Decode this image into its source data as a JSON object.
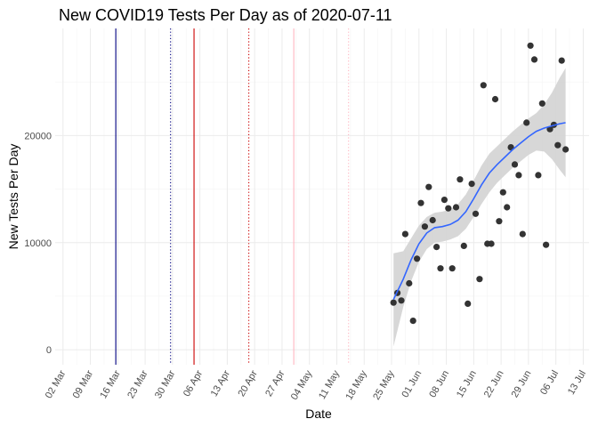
{
  "chart_data": {
    "type": "scatter",
    "title": "New COVID19 Tests Per Day as of 2020-07-11",
    "xlabel": "Date",
    "ylabel": "New Tests Per Day",
    "x_ticks": [
      "02 Mar",
      "09 Mar",
      "16 Mar",
      "23 Mar",
      "30 Mar",
      "06 Apr",
      "13 Apr",
      "20 Apr",
      "27 Apr",
      "04 May",
      "11 May",
      "18 May",
      "25 May",
      "01 Jun",
      "08 Jun",
      "15 Jun",
      "22 Jun",
      "29 Jun",
      "06 Jul",
      "13 Jul"
    ],
    "x_tick_days": [
      0,
      7,
      14,
      21,
      28,
      35,
      42,
      49,
      56,
      63,
      70,
      77,
      84,
      91,
      98,
      105,
      112,
      119,
      126,
      133
    ],
    "x_day_zero": "2020-03-02",
    "xlim_days": [
      -2,
      134.5
    ],
    "y_ticks": [
      0,
      10000,
      20000
    ],
    "ylim": [
      -1400,
      30000
    ],
    "grid": true,
    "vertical_lines": [
      {
        "day": 13.5,
        "color": "#000080",
        "style": "solid"
      },
      {
        "day": 27.5,
        "color": "#000080",
        "style": "dotted"
      },
      {
        "day": 33.5,
        "color": "#cc0000",
        "style": "solid"
      },
      {
        "day": 47.5,
        "color": "#cc0000",
        "style": "dotted"
      },
      {
        "day": 59.0,
        "color": "#ffb6c1",
        "style": "solid"
      },
      {
        "day": 73.0,
        "color": "#ffb6c1",
        "style": "dotted"
      }
    ],
    "series": [
      {
        "name": "New Tests Per Day",
        "point_color": "#333333",
        "points": [
          [
            84.5,
            4400
          ],
          [
            85.5,
            5300
          ],
          [
            86.5,
            4600
          ],
          [
            87.5,
            10800
          ],
          [
            88.5,
            6200
          ],
          [
            89.5,
            2700
          ],
          [
            90.5,
            8500
          ],
          [
            91.5,
            13700
          ],
          [
            92.5,
            11500
          ],
          [
            93.5,
            15200
          ],
          [
            94.5,
            12100
          ],
          [
            95.5,
            9600
          ],
          [
            96.5,
            7600
          ],
          [
            97.5,
            14000
          ],
          [
            98.5,
            13200
          ],
          [
            99.5,
            7600
          ],
          [
            100.5,
            13300
          ],
          [
            101.5,
            15900
          ],
          [
            102.5,
            9700
          ],
          [
            103.5,
            4300
          ],
          [
            104.5,
            15500
          ],
          [
            105.5,
            12700
          ],
          [
            106.5,
            6600
          ],
          [
            107.5,
            24700
          ],
          [
            108.5,
            9900
          ],
          [
            109.5,
            9900
          ],
          [
            110.5,
            23400
          ],
          [
            111.5,
            12000
          ],
          [
            112.5,
            14700
          ],
          [
            113.5,
            13300
          ],
          [
            114.5,
            18900
          ],
          [
            115.5,
            17300
          ],
          [
            116.5,
            16300
          ],
          [
            117.5,
            10800
          ],
          [
            118.5,
            21200
          ],
          [
            119.5,
            28400
          ],
          [
            120.5,
            27100
          ],
          [
            121.5,
            16300
          ],
          [
            122.5,
            23000
          ],
          [
            123.5,
            9800
          ],
          [
            124.5,
            20600
          ],
          [
            125.5,
            21000
          ],
          [
            126.5,
            19100
          ],
          [
            127.5,
            27000
          ],
          [
            128.5,
            18700
          ]
        ]
      },
      {
        "name": "Smoothed trend",
        "line_color": "#3366ff",
        "ribbon_color": "#d3d3d3",
        "trend": [
          [
            84.5,
            4700
          ],
          [
            87,
            6600
          ],
          [
            89,
            8400
          ],
          [
            91,
            9900
          ],
          [
            93,
            10900
          ],
          [
            95,
            11400
          ],
          [
            97,
            11500
          ],
          [
            99,
            11700
          ],
          [
            101,
            12100
          ],
          [
            103,
            12900
          ],
          [
            105,
            14100
          ],
          [
            107,
            15400
          ],
          [
            109,
            16500
          ],
          [
            111,
            17300
          ],
          [
            113,
            18000
          ],
          [
            115,
            18700
          ],
          [
            117,
            19300
          ],
          [
            119,
            19900
          ],
          [
            121,
            20400
          ],
          [
            123,
            20700
          ],
          [
            125,
            20900
          ],
          [
            127,
            21100
          ],
          [
            128.5,
            21200
          ]
        ],
        "ribbon_upper": [
          [
            84.5,
            9000
          ],
          [
            87,
            9200
          ],
          [
            89,
            10400
          ],
          [
            91,
            11600
          ],
          [
            93,
            12400
          ],
          [
            95,
            12800
          ],
          [
            97,
            12900
          ],
          [
            99,
            13100
          ],
          [
            101,
            13600
          ],
          [
            103,
            14500
          ],
          [
            105,
            15800
          ],
          [
            107,
            17200
          ],
          [
            109,
            18300
          ],
          [
            111,
            19000
          ],
          [
            113,
            19700
          ],
          [
            115,
            20400
          ],
          [
            117,
            21000
          ],
          [
            119,
            21600
          ],
          [
            121,
            22100
          ],
          [
            123,
            22900
          ],
          [
            125,
            24000
          ],
          [
            127,
            25400
          ],
          [
            128.5,
            26300
          ]
        ],
        "ribbon_lower": [
          [
            84.5,
            300
          ],
          [
            87,
            4000
          ],
          [
            89,
            6400
          ],
          [
            91,
            8200
          ],
          [
            93,
            9400
          ],
          [
            95,
            10000
          ],
          [
            97,
            10100
          ],
          [
            99,
            10300
          ],
          [
            101,
            10600
          ],
          [
            103,
            11300
          ],
          [
            105,
            12400
          ],
          [
            107,
            13600
          ],
          [
            109,
            14700
          ],
          [
            111,
            15600
          ],
          [
            113,
            16300
          ],
          [
            115,
            17000
          ],
          [
            117,
            17600
          ],
          [
            119,
            18200
          ],
          [
            121,
            18600
          ],
          [
            123,
            18500
          ],
          [
            125,
            17800
          ],
          [
            127,
            16800
          ],
          [
            128.5,
            16100
          ]
        ]
      }
    ]
  }
}
